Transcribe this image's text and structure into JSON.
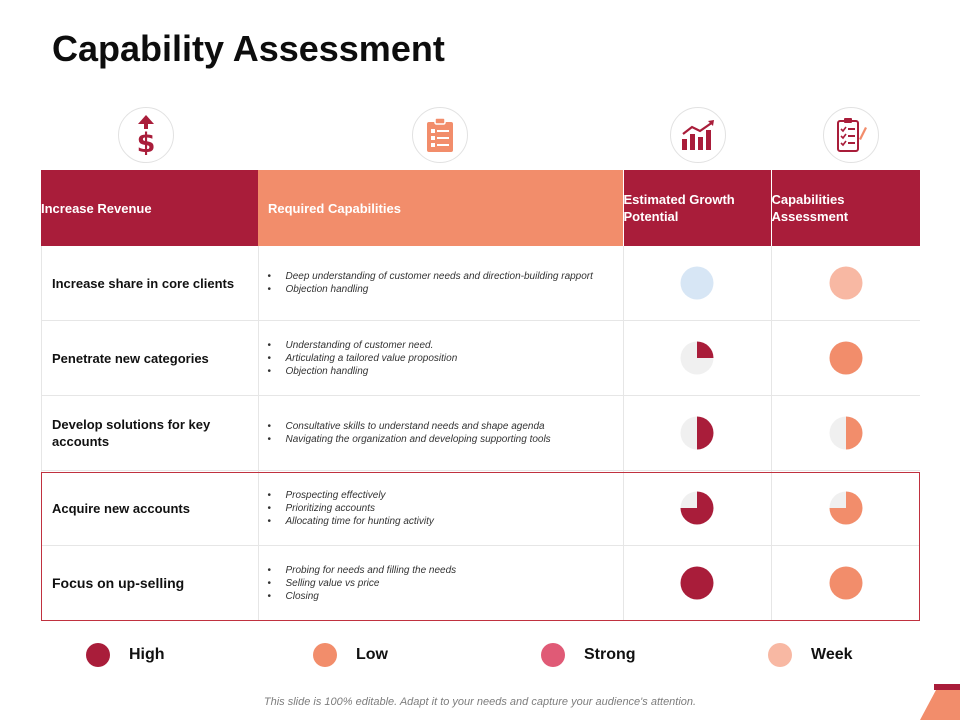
{
  "title": "Capability Assessment",
  "colors": {
    "high": "#a91d3a",
    "low": "#f28d6b",
    "strong": "#e05a76",
    "week": "#f8b8a3",
    "empty": "#f0f0f0",
    "est_light": "#d7e6f5"
  },
  "icons": [
    "dollar-arrow-icon",
    "clipboard-list-icon",
    "bar-chart-growth-icon",
    "checklist-pen-icon"
  ],
  "table": {
    "headers": {
      "goal": "Increase Revenue",
      "capabilities": "Required Capabilities",
      "estimated": "Estimated Growth Potential",
      "assessment": "Capabilities Assessment"
    },
    "rows": [
      {
        "goal": "Increase share in core clients",
        "capabilities": [
          "Deep understanding of customer needs and direction-building rapport",
          "Objection handling"
        ],
        "estimated": 0,
        "assessment": 0,
        "estimated_color": "#d7e6f5",
        "assessment_color": "#f8b8a3"
      },
      {
        "goal": "Penetrate new categories",
        "capabilities": [
          "Understanding of customer need.",
          "Articulating a tailored value proposition",
          "Objection handling"
        ],
        "estimated": 0.25,
        "assessment": 1,
        "estimated_color": "#a91d3a",
        "assessment_color": "#f28d6b"
      },
      {
        "goal": "Develop solutions for key accounts",
        "capabilities": [
          "Consultative skills to understand needs and shape agenda",
          "Navigating the organization and developing supporting tools"
        ],
        "estimated": 0.5,
        "assessment": 0.5,
        "estimated_color": "#a91d3a",
        "assessment_color": "#f28d6b"
      },
      {
        "goal": "Acquire new accounts",
        "capabilities": [
          "Prospecting effectively",
          "Prioritizing accounts",
          "Allocating time for hunting activity"
        ],
        "estimated": 0.75,
        "assessment": 0.75,
        "estimated_color": "#a91d3a",
        "assessment_color": "#f28d6b"
      },
      {
        "goal": "Focus on up-selling",
        "capabilities": [
          "Probing for needs and filling the needs",
          "Selling value vs price",
          "Closing"
        ],
        "estimated": 1,
        "assessment": 1,
        "estimated_color": "#a91d3a",
        "assessment_color": "#f28d6b"
      }
    ]
  },
  "legend": [
    {
      "label": "High",
      "color": "#a91d3a"
    },
    {
      "label": "Low",
      "color": "#f28d6b"
    },
    {
      "label": "Strong",
      "color": "#e05a76"
    },
    {
      "label": "Week",
      "color": "#f8b8a3"
    }
  ],
  "footer": "This slide is 100% editable. Adapt it to your needs and capture your audience's attention."
}
